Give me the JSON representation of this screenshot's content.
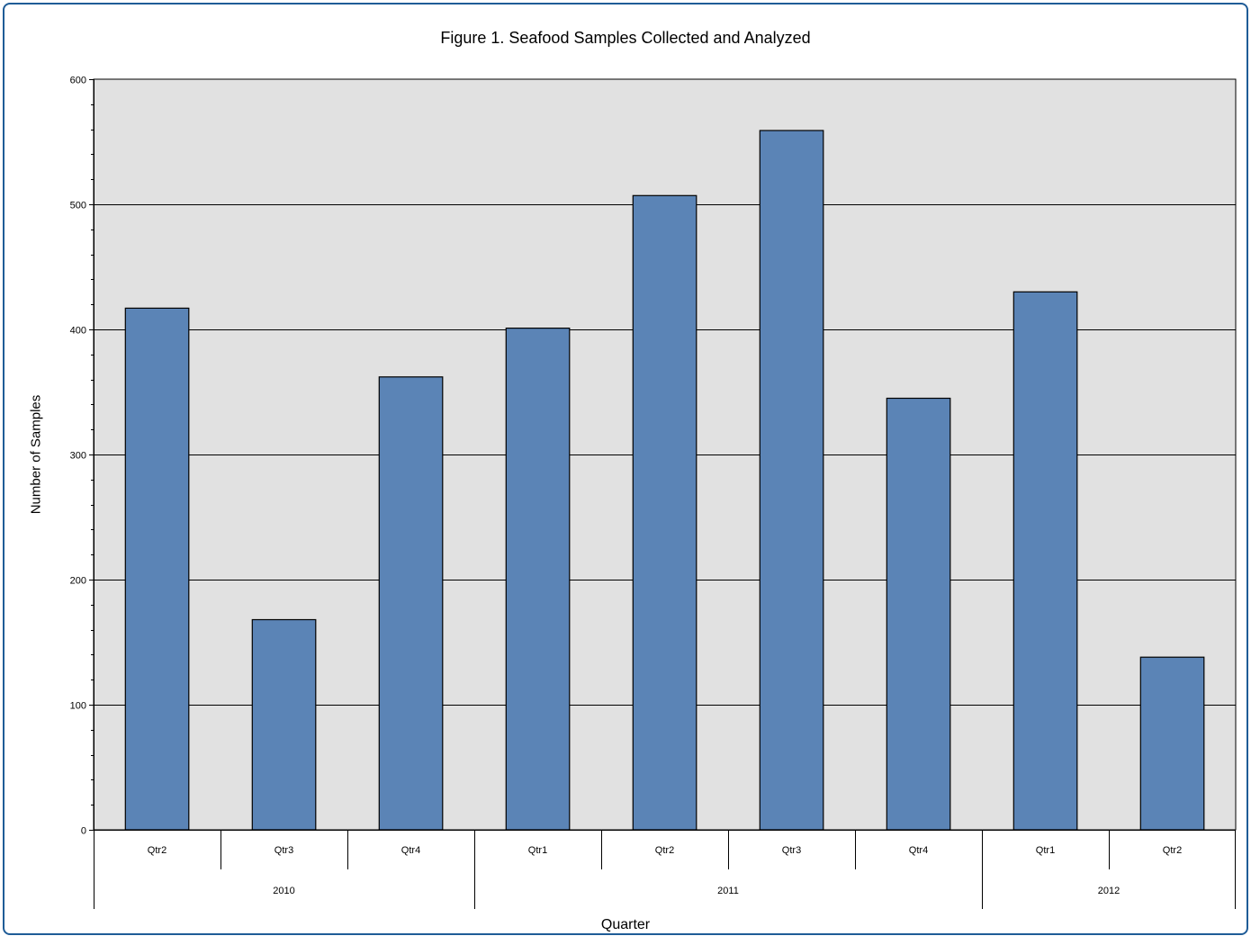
{
  "chart_data": {
    "type": "bar",
    "title": "Figure 1.  Seafood Samples Collected and Analyzed",
    "xlabel": "Quarter",
    "ylabel": "Number of Samples",
    "ylim": [
      0,
      600
    ],
    "yticks": [
      0,
      100,
      200,
      300,
      400,
      500,
      600
    ],
    "grid": true,
    "categories": [
      "Qtr2",
      "Qtr3",
      "Qtr4",
      "Qtr1",
      "Qtr2",
      "Qtr3",
      "Qtr4",
      "Qtr1",
      "Qtr2"
    ],
    "groups": [
      {
        "label": "2010",
        "count": 3
      },
      {
        "label": "2011",
        "count": 4
      },
      {
        "label": "2012",
        "count": 2
      }
    ],
    "values": [
      417,
      168,
      362,
      401,
      507,
      559,
      345,
      430,
      138
    ],
    "colors": {
      "bar": "#5b84b6",
      "plot_background": "#e1e1e1",
      "frame": "#1f5c97"
    }
  }
}
